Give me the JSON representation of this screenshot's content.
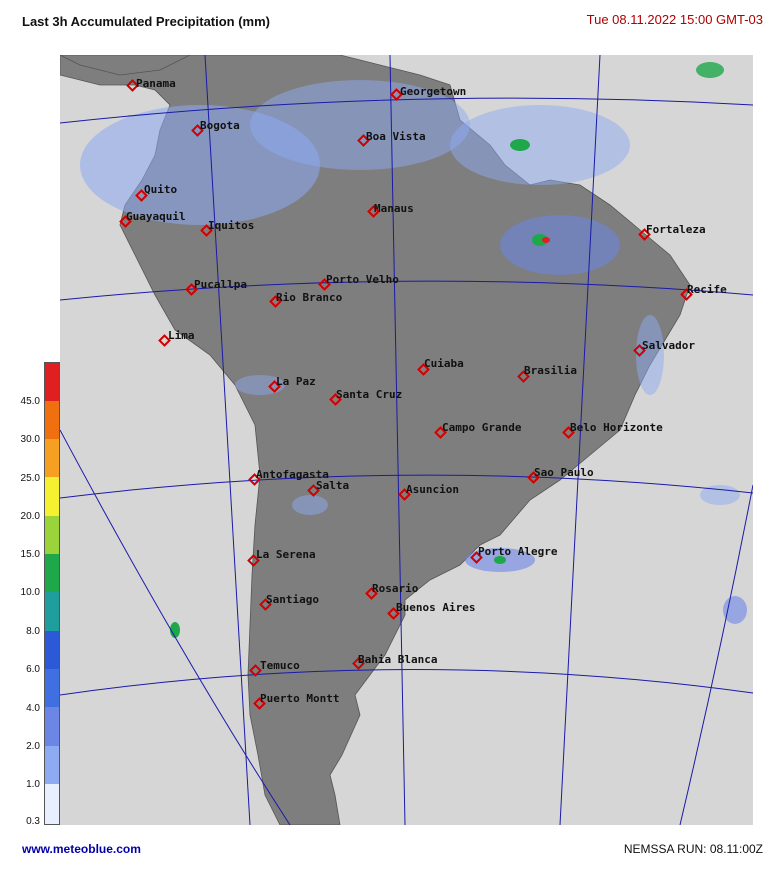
{
  "header": {
    "title": "Last 3h Accumulated Precipitation (mm)",
    "timestamp": "Tue 08.11.2022  15:00 GMT-03"
  },
  "footer": {
    "url": "www.meteoblue.com",
    "run": "NEMSSA  RUN: 08.11:00Z"
  },
  "colors": {
    "ocean": "#d6d6d6",
    "land": "#7e7e7e",
    "grid": "#1a1aa8",
    "city_marker": "#d00000"
  },
  "legend": {
    "labels": [
      "45.0",
      "30.0",
      "25.0",
      "20.0",
      "15.0",
      "10.0",
      "8.0",
      "6.0",
      "4.0",
      "2.0",
      "1.0",
      "0.3"
    ],
    "colors": [
      "#e8f0ff",
      "#b9cdf8",
      "#8eaaf2",
      "#6c86e6",
      "#3f6fe0",
      "#2b59d8",
      "#1f9e9e",
      "#1ea84a",
      "#9ad43a",
      "#f5f030",
      "#f5a020",
      "#f07010",
      "#e02020"
    ]
  },
  "cities": [
    {
      "name": "Panama"
    },
    {
      "name": "Georgetown"
    },
    {
      "name": "Bogota"
    },
    {
      "name": "Boa Vista"
    },
    {
      "name": "Quito"
    },
    {
      "name": "Guayaquil"
    },
    {
      "name": "Iquitos"
    },
    {
      "name": "Manaus"
    },
    {
      "name": "Fortaleza"
    },
    {
      "name": "Recife"
    },
    {
      "name": "Pucallpa"
    },
    {
      "name": "Porto Velho"
    },
    {
      "name": "Rio Branco"
    },
    {
      "name": "Salvador"
    },
    {
      "name": "Lima"
    },
    {
      "name": "Cuiaba"
    },
    {
      "name": "Brasilia"
    },
    {
      "name": "La Paz"
    },
    {
      "name": "Santa Cruz"
    },
    {
      "name": "Campo Grande"
    },
    {
      "name": "Belo Horizonte"
    },
    {
      "name": "Sao Paulo"
    },
    {
      "name": "Antofagasta"
    },
    {
      "name": "Salta"
    },
    {
      "name": "Asuncion"
    },
    {
      "name": "Porto Alegre"
    },
    {
      "name": "La Serena"
    },
    {
      "name": "Rosario"
    },
    {
      "name": "Santiago"
    },
    {
      "name": "Buenos Aires"
    },
    {
      "name": "Temuco"
    },
    {
      "name": "Bahia Blanca"
    },
    {
      "name": "Puerto Montt"
    }
  ]
}
